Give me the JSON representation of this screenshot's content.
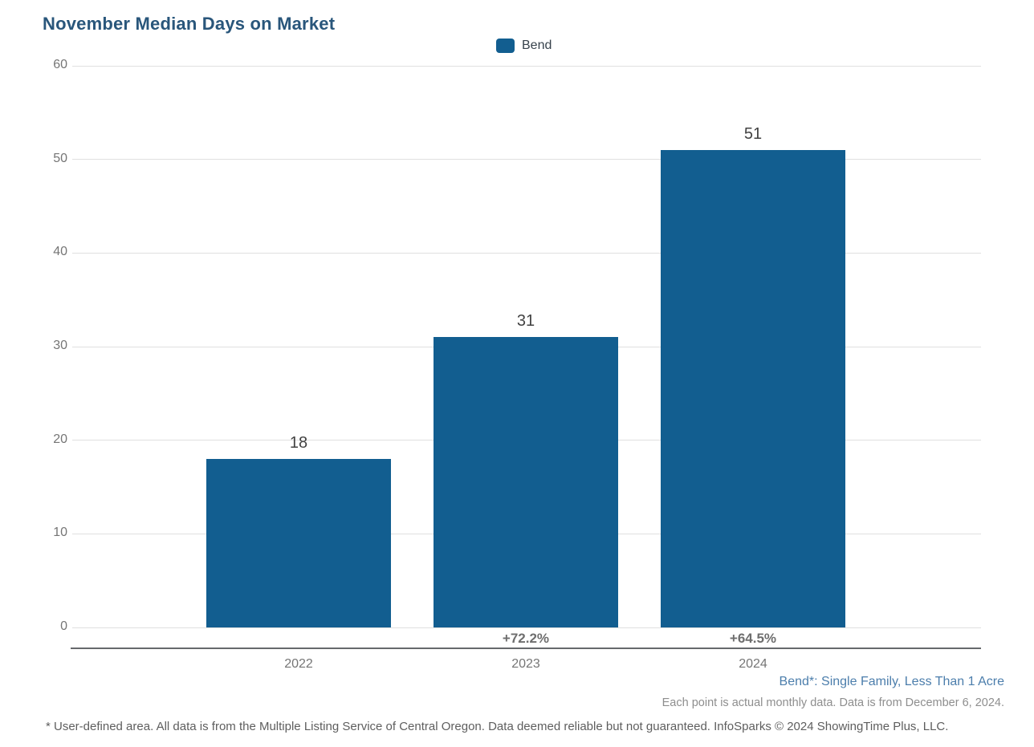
{
  "page": {
    "title": "November Median Days on Market"
  },
  "legend": {
    "label": "Bend",
    "swatch_color": "#125E90"
  },
  "chart_data": {
    "type": "bar",
    "title": "November Median Days on Market",
    "categories": [
      "2022",
      "2023",
      "2024"
    ],
    "series": [
      {
        "name": "Bend",
        "values": [
          18,
          31,
          51
        ]
      }
    ],
    "bar_value_labels": [
      "18",
      "31",
      "51"
    ],
    "pct_change_labels": [
      "",
      "+72.2%",
      "+64.5%"
    ],
    "ylim": [
      0,
      60
    ],
    "yticks": [
      0,
      10,
      20,
      30,
      40,
      50,
      60
    ],
    "xlabel": "",
    "ylabel": "",
    "grid": true,
    "legend_position": "top-center",
    "bar_color": "#125E90"
  },
  "footnotes": {
    "series_definition": "Bend*: Single Family, Less Than 1 Acre",
    "data_note": "Each point is actual monthly data. Data is from December 6, 2024.",
    "disclaimer": "* User-defined area. All data is from the Multiple Listing Service of Central Oregon. Data deemed reliable but not guaranteed. InfoSparks © 2024 ShowingTime Plus, LLC."
  },
  "colors": {
    "bar": "#125E90",
    "title_text": "#29567B",
    "gridline": "#E0E0E0",
    "axis_line": "#66696C",
    "tick_text": "#757575",
    "value_text": "#424242",
    "pct_text": "#6E6E6E",
    "footnote_series_text": "#4C7EAC",
    "footnote_data_text": "#8E8E8E",
    "footnote_disclaimer_text": "#5E5E5E"
  }
}
